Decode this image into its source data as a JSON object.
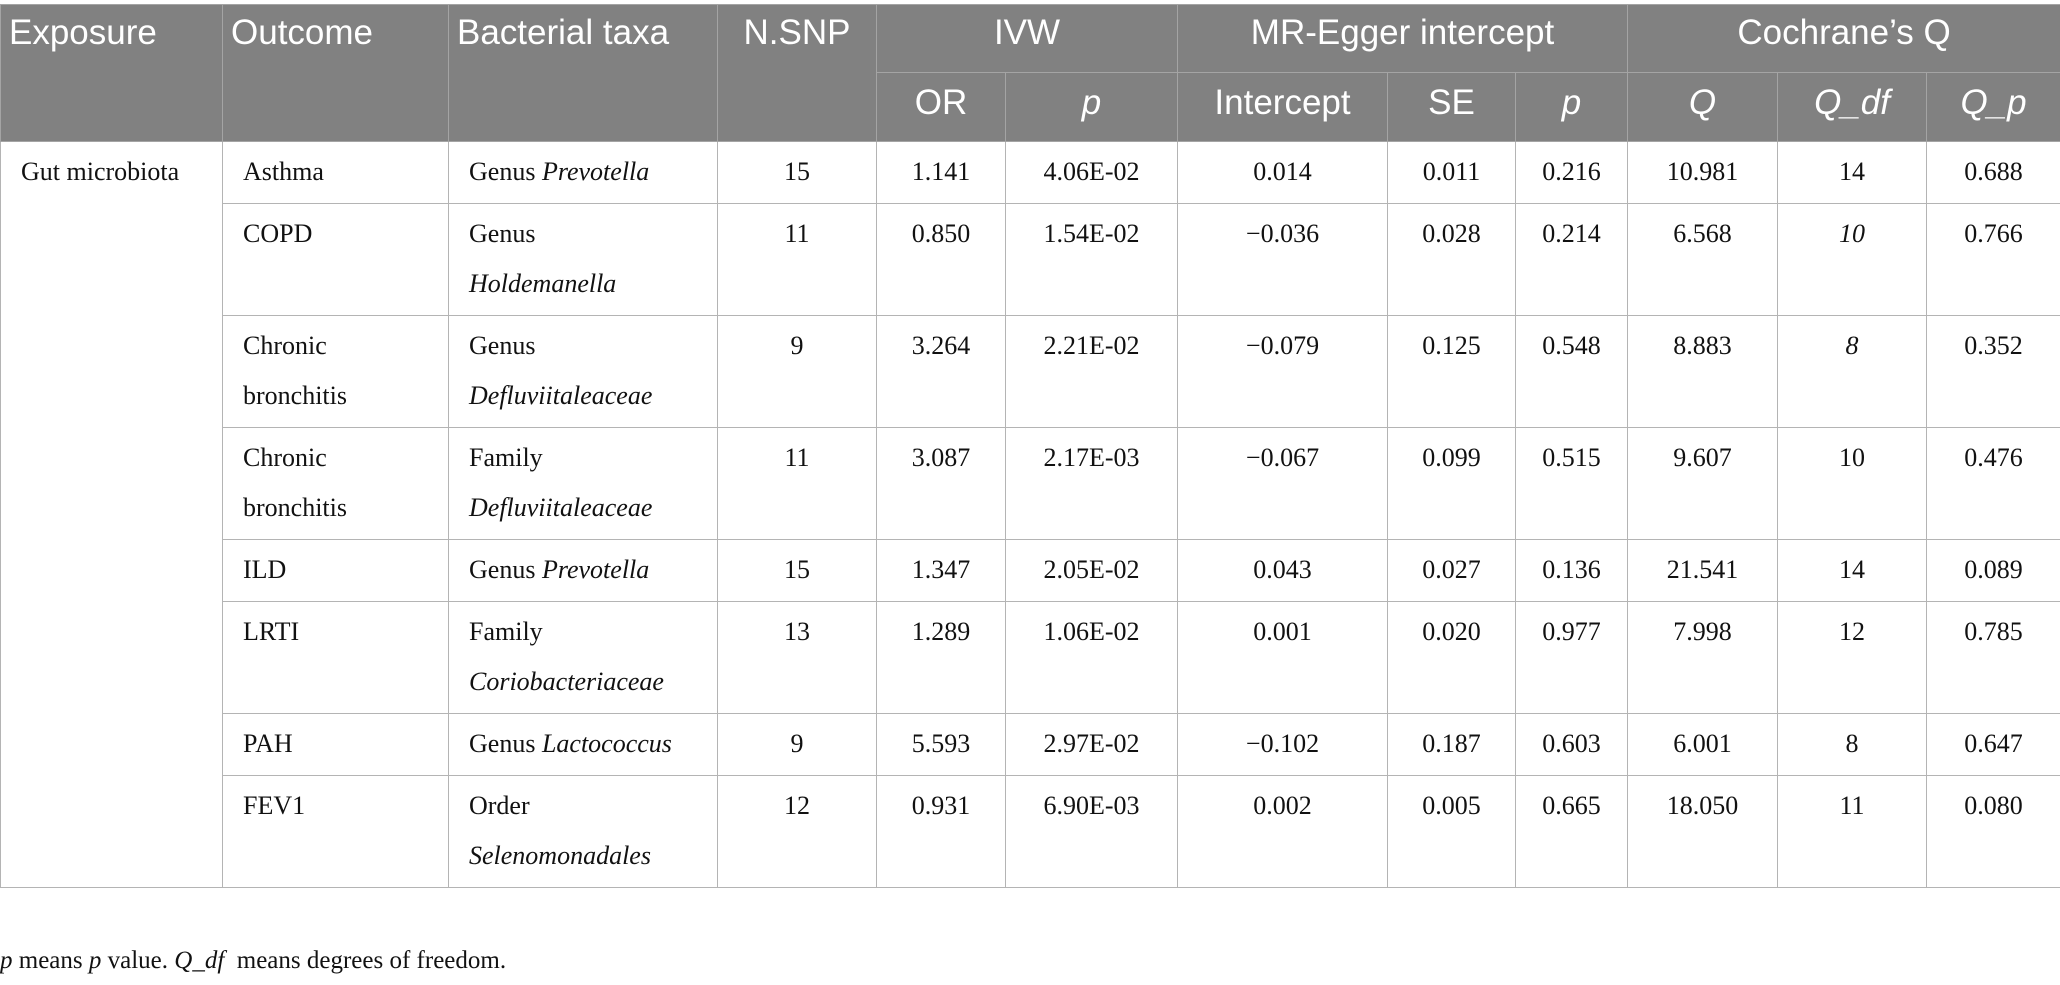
{
  "header": {
    "exposure": "Exposure",
    "outcome": "Outcome",
    "taxa": "Bacterial taxa",
    "nsnp": "N.SNP",
    "ivw": "IVW",
    "egger": "MR-Egger intercept",
    "cochran": "Cochrane’s Q",
    "or": "OR",
    "p": "p",
    "intercept": "Intercept",
    "se": "SE",
    "p2": "p",
    "q": "Q",
    "qdf": "Q_df",
    "qp": "Q_p"
  },
  "exposure": "Gut microbiota",
  "rows": [
    {
      "outcome": [
        "Asthma"
      ],
      "rank": "Genus",
      "taxon": "Prevotella",
      "inline": true,
      "nsnp": "15",
      "or": "1.141",
      "p": "4.06E-02",
      "intercept": "0.014",
      "se": "0.011",
      "p2": "0.216",
      "q": "10.981",
      "qdf": "14",
      "qdf_italic": false,
      "qp": "0.688"
    },
    {
      "outcome": [
        "COPD"
      ],
      "rank": "Genus",
      "taxon": "Holdemanella",
      "inline": false,
      "nsnp": "11",
      "or": "0.850",
      "p": "1.54E-02",
      "intercept": "−0.036",
      "se": "0.028",
      "p2": "0.214",
      "q": "6.568",
      "qdf": "10",
      "qdf_italic": true,
      "qp": "0.766"
    },
    {
      "outcome": [
        "Chronic",
        "bronchitis"
      ],
      "rank": "Genus",
      "taxon": "Defluviitaleaceae",
      "inline": false,
      "nsnp": "9",
      "or": "3.264",
      "p": "2.21E-02",
      "intercept": "−0.079",
      "se": "0.125",
      "p2": "0.548",
      "q": "8.883",
      "qdf": "8",
      "qdf_italic": true,
      "qp": "0.352"
    },
    {
      "outcome": [
        "Chronic",
        "bronchitis"
      ],
      "rank": "Family",
      "taxon": "Defluviitaleaceae",
      "inline": false,
      "nsnp": "11",
      "or": "3.087",
      "p": "2.17E-03",
      "intercept": "−0.067",
      "se": "0.099",
      "p2": "0.515",
      "q": "9.607",
      "qdf": "10",
      "qdf_italic": false,
      "qp": "0.476"
    },
    {
      "outcome": [
        "ILD"
      ],
      "rank": "Genus",
      "taxon": "Prevotella",
      "inline": true,
      "nsnp": "15",
      "or": "1.347",
      "p": "2.05E-02",
      "intercept": "0.043",
      "se": "0.027",
      "p2": "0.136",
      "q": "21.541",
      "qdf": "14",
      "qdf_italic": false,
      "qp": "0.089"
    },
    {
      "outcome": [
        "LRTI"
      ],
      "rank": "Family",
      "taxon": "Coriobacteriaceae",
      "inline": false,
      "nsnp": "13",
      "or": "1.289",
      "p": "1.06E-02",
      "intercept": "0.001",
      "se": "0.020",
      "p2": "0.977",
      "q": "7.998",
      "qdf": "12",
      "qdf_italic": false,
      "qp": "0.785"
    },
    {
      "outcome": [
        "PAH"
      ],
      "rank": "Genus",
      "taxon": "Lactococcus",
      "inline": true,
      "nsnp": "9",
      "or": "5.593",
      "p": "2.97E-02",
      "intercept": "−0.102",
      "se": "0.187",
      "p2": "0.603",
      "q": "6.001",
      "qdf": "8",
      "qdf_italic": false,
      "qp": "0.647"
    },
    {
      "outcome": [
        "FEV1"
      ],
      "rank": "Order",
      "taxon": "Selenomonadales",
      "inline": false,
      "nsnp": "12",
      "or": "0.931",
      "p": "6.90E-03",
      "intercept": "0.002",
      "se": "0.005",
      "p2": "0.665",
      "q": "18.050",
      "qdf": "11",
      "qdf_italic": false,
      "qp": "0.080"
    }
  ],
  "footnote": {
    "p": "p",
    "p_means": " means ",
    "p2": "p",
    "value": " value. ",
    "qdf": "Q_df",
    "rest": "  means degrees of freedom."
  }
}
